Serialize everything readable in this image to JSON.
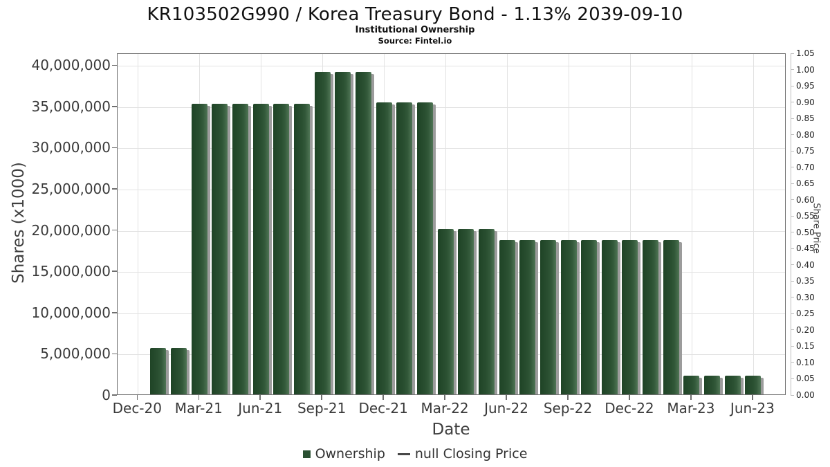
{
  "header": {
    "title": "KR103502G990 / Korea Treasury Bond - 1.13% 2039-09-10",
    "subtitle": "Institutional Ownership",
    "source": "Source: Fintel.io"
  },
  "chart_data": {
    "type": "bar",
    "title": "KR103502G990 / Korea Treasury Bond - 1.13% 2039-09-10",
    "subtitle": "Institutional Ownership",
    "source": "Source: Fintel.io",
    "xlabel": "Date",
    "ylabel_left": "Shares (x1000)",
    "ylabel_right": "Share Price",
    "grid": true,
    "legend_position": "bottom",
    "x_axis": {
      "tick_labels": [
        "Dec-20",
        "Mar-21",
        "Jun-21",
        "Sep-21",
        "Dec-21",
        "Mar-22",
        "Jun-22",
        "Sep-22",
        "Dec-22",
        "Mar-23",
        "Jun-23"
      ]
    },
    "y_axis_left": {
      "min": 0,
      "max": 41450000,
      "tick_interval": 5000000,
      "tick_labels": [
        "0",
        "5,000,000",
        "10,000,000",
        "15,000,000",
        "20,000,000",
        "25,000,000",
        "30,000,000",
        "35,000,000",
        "40,000,000"
      ]
    },
    "y_axis_right": {
      "min": 0,
      "max": 1.05,
      "tick_interval": 0.05,
      "tick_labels": [
        "0.00",
        "0.05",
        "0.10",
        "0.15",
        "0.20",
        "0.25",
        "0.30",
        "0.35",
        "0.40",
        "0.45",
        "0.50",
        "0.55",
        "0.60",
        "0.65",
        "0.70",
        "0.75",
        "0.80",
        "0.85",
        "0.90",
        "0.95",
        "1.00",
        "1.05"
      ]
    },
    "series": [
      {
        "name": "Ownership",
        "type": "bar",
        "color": "#2a5032",
        "x": [
          "Jan-21",
          "Feb-21",
          "Mar-21",
          "Apr-21",
          "May-21",
          "Jun-21",
          "Jul-21",
          "Aug-21",
          "Sep-21",
          "Oct-21",
          "Nov-21",
          "Dec-21",
          "Jan-22",
          "Feb-22",
          "Mar-22",
          "Apr-22",
          "May-22",
          "Jun-22",
          "Jul-22",
          "Aug-22",
          "Sep-22",
          "Oct-22",
          "Nov-22",
          "Dec-22",
          "Jan-23",
          "Feb-23",
          "Mar-23",
          "Apr-23",
          "May-23",
          "Jun-23"
        ],
        "values": [
          5800000,
          5800000,
          35400000,
          35400000,
          35400000,
          35400000,
          35400000,
          35400000,
          39300000,
          39300000,
          39300000,
          35600000,
          35600000,
          35600000,
          20200000,
          20200000,
          20200000,
          18900000,
          18900000,
          18900000,
          18900000,
          18900000,
          18900000,
          18900000,
          18900000,
          18900000,
          2400000,
          2400000,
          2400000,
          2400000
        ]
      },
      {
        "name": "null Closing Price",
        "type": "line",
        "color": "#474747",
        "values": []
      }
    ],
    "legend": [
      "Ownership",
      "null Closing Price"
    ]
  }
}
